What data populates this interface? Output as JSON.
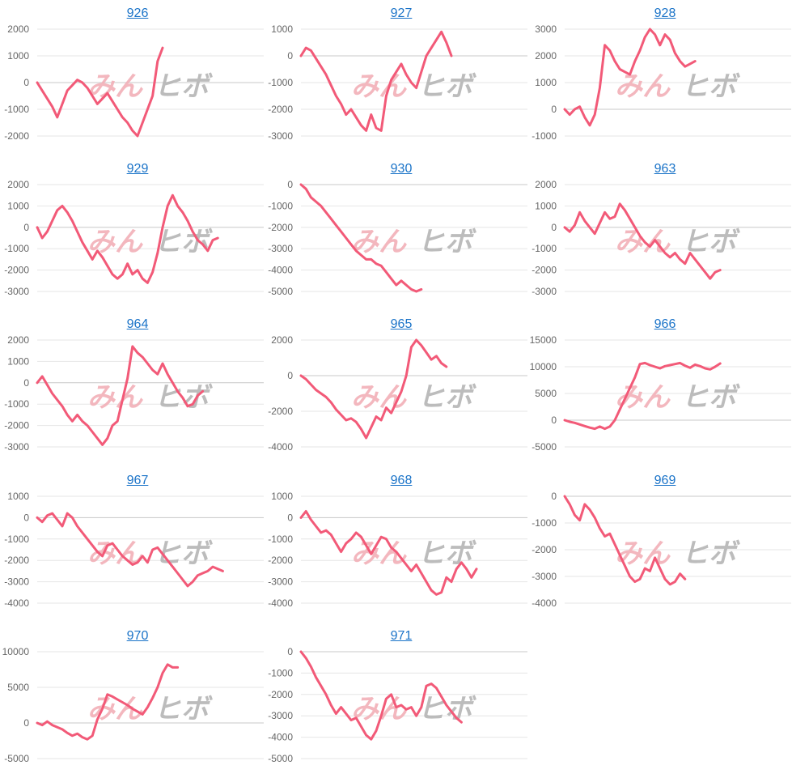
{
  "watermark": {
    "part1": "みん",
    "part2": "ヒボ"
  },
  "colors": {
    "line": "#f25a78",
    "title": "#1a73c8",
    "grid": "#e6e6e6"
  },
  "chart_data": [
    {
      "type": "line",
      "title": "926",
      "yticks": [
        2000,
        1000,
        0,
        -1000,
        -2000
      ],
      "ylim": [
        -2000,
        2000
      ],
      "values": [
        0,
        -300,
        -600,
        -900,
        -1300,
        -800,
        -300,
        -100,
        100,
        0,
        -200,
        -500,
        -800,
        -600,
        -400,
        -700,
        -1000,
        -1300,
        -1500,
        -1800,
        -2000,
        -1500,
        -1000,
        -500,
        800,
        1300
      ]
    },
    {
      "type": "line",
      "title": "927",
      "yticks": [
        1000,
        0,
        -1000,
        -2000,
        -3000
      ],
      "ylim": [
        -3000,
        1000
      ],
      "values": [
        0,
        300,
        200,
        -100,
        -400,
        -700,
        -1100,
        -1500,
        -1800,
        -2200,
        -2000,
        -2300,
        -2600,
        -2800,
        -2200,
        -2700,
        -2800,
        -1500,
        -900,
        -600,
        -300,
        -700,
        -1000,
        -1200,
        -600,
        0,
        300,
        600,
        900,
        500,
        0
      ]
    },
    {
      "type": "line",
      "title": "928",
      "yticks": [
        3000,
        2000,
        1000,
        0,
        -1000
      ],
      "ylim": [
        -1000,
        3000
      ],
      "values": [
        0,
        -200,
        0,
        100,
        -300,
        -600,
        -200,
        800,
        2400,
        2200,
        1800,
        1500,
        1400,
        1300,
        1800,
        2200,
        2700,
        3000,
        2800,
        2400,
        2800,
        2600,
        2100,
        1800,
        1600,
        1700,
        1800
      ]
    },
    {
      "type": "line",
      "title": "929",
      "yticks": [
        2000,
        1000,
        0,
        -1000,
        -2000,
        -3000
      ],
      "ylim": [
        -3000,
        2000
      ],
      "values": [
        0,
        -500,
        -200,
        300,
        800,
        1000,
        700,
        300,
        -200,
        -700,
        -1100,
        -1500,
        -1100,
        -1400,
        -1800,
        -2200,
        -2400,
        -2200,
        -1700,
        -2200,
        -2000,
        -2400,
        -2600,
        -2100,
        -1200,
        0,
        1000,
        1500,
        1000,
        700,
        300,
        -200,
        -600,
        -800,
        -1100,
        -600,
        -500
      ]
    },
    {
      "type": "line",
      "title": "930",
      "yticks": [
        0,
        -1000,
        -2000,
        -3000,
        -4000,
        -5000
      ],
      "ylim": [
        -5000,
        0
      ],
      "values": [
        0,
        -200,
        -600,
        -800,
        -1000,
        -1300,
        -1600,
        -1900,
        -2200,
        -2500,
        -2800,
        -3100,
        -3300,
        -3500,
        -3500,
        -3700,
        -3800,
        -4100,
        -4400,
        -4700,
        -4500,
        -4700,
        -4900,
        -5000,
        -4900
      ]
    },
    {
      "type": "line",
      "title": "963",
      "yticks": [
        2000,
        1000,
        0,
        -1000,
        -2000,
        -3000
      ],
      "ylim": [
        -3000,
        2000
      ],
      "values": [
        0,
        -200,
        100,
        700,
        300,
        0,
        -300,
        200,
        700,
        400,
        500,
        1100,
        800,
        400,
        0,
        -400,
        -700,
        -900,
        -600,
        -900,
        -1200,
        -1400,
        -1200,
        -1500,
        -1700,
        -1200,
        -1500,
        -1800,
        -2100,
        -2400,
        -2100,
        -2000
      ]
    },
    {
      "type": "line",
      "title": "964",
      "yticks": [
        2000,
        1000,
        0,
        -1000,
        -2000,
        -3000
      ],
      "ylim": [
        -3000,
        2000
      ],
      "values": [
        0,
        300,
        -100,
        -500,
        -800,
        -1100,
        -1500,
        -1800,
        -1500,
        -1800,
        -2000,
        -2300,
        -2600,
        -2900,
        -2600,
        -2000,
        -1800,
        -800,
        200,
        1700,
        1400,
        1200,
        900,
        600,
        400,
        900,
        400,
        0,
        -400,
        -700,
        -1100,
        -1000,
        -600,
        -400
      ]
    },
    {
      "type": "line",
      "title": "965",
      "yticks": [
        2000,
        0,
        -2000,
        -4000
      ],
      "ylim": [
        -4000,
        2000
      ],
      "values": [
        0,
        -200,
        -500,
        -800,
        -1000,
        -1200,
        -1500,
        -1900,
        -2200,
        -2500,
        -2400,
        -2600,
        -3000,
        -3500,
        -2900,
        -2300,
        -2500,
        -1800,
        -2100,
        -1500,
        -900,
        0,
        1600,
        2000,
        1700,
        1300,
        900,
        1100,
        700,
        500
      ]
    },
    {
      "type": "line",
      "title": "966",
      "yticks": [
        15000,
        10000,
        5000,
        0,
        -5000
      ],
      "ylim": [
        -5000,
        15000
      ],
      "values": [
        0,
        -300,
        -500,
        -800,
        -1100,
        -1400,
        -1600,
        -1200,
        -1600,
        -1200,
        0,
        2000,
        4000,
        6000,
        8000,
        10500,
        10700,
        10300,
        10000,
        9700,
        10100,
        10300,
        10500,
        10700,
        10200,
        9800,
        10400,
        10100,
        9700,
        9500,
        10000,
        10600
      ]
    },
    {
      "type": "line",
      "title": "967",
      "yticks": [
        1000,
        0,
        -1000,
        -2000,
        -3000,
        -4000
      ],
      "ylim": [
        -4000,
        1000
      ],
      "values": [
        0,
        -200,
        100,
        200,
        -100,
        -400,
        200,
        0,
        -400,
        -700,
        -1000,
        -1300,
        -1600,
        -1800,
        -1300,
        -1200,
        -1500,
        -1800,
        -2000,
        -2200,
        -2100,
        -1800,
        -2100,
        -1500,
        -1400,
        -1700,
        -2000,
        -2300,
        -2600,
        -2900,
        -3200,
        -3000,
        -2700,
        -2600,
        -2500,
        -2300,
        -2400,
        -2500
      ]
    },
    {
      "type": "line",
      "title": "968",
      "yticks": [
        1000,
        0,
        -1000,
        -2000,
        -3000,
        -4000
      ],
      "ylim": [
        -4000,
        1000
      ],
      "values": [
        0,
        300,
        -100,
        -400,
        -700,
        -600,
        -800,
        -1200,
        -1600,
        -1200,
        -1000,
        -700,
        -900,
        -1300,
        -1700,
        -1300,
        -900,
        -1000,
        -1400,
        -1600,
        -1900,
        -2200,
        -2500,
        -2200,
        -2600,
        -3000,
        -3400,
        -3600,
        -3500,
        -2800,
        -3000,
        -2400,
        -2100,
        -2400,
        -2800,
        -2400
      ]
    },
    {
      "type": "line",
      "title": "969",
      "yticks": [
        0,
        -1000,
        -2000,
        -3000,
        -4000
      ],
      "ylim": [
        -4000,
        0
      ],
      "values": [
        0,
        -300,
        -700,
        -900,
        -300,
        -500,
        -800,
        -1200,
        -1500,
        -1400,
        -1800,
        -2200,
        -2600,
        -3000,
        -3200,
        -3100,
        -2700,
        -2800,
        -2300,
        -2700,
        -3100,
        -3300,
        -3200,
        -2900,
        -3100
      ]
    },
    {
      "type": "line",
      "title": "970",
      "yticks": [
        10000,
        5000,
        0,
        -5000
      ],
      "ylim": [
        -5000,
        10000
      ],
      "values": [
        0,
        -300,
        200,
        -300,
        -600,
        -900,
        -1400,
        -1800,
        -1500,
        -2000,
        -2300,
        -1800,
        500,
        2000,
        4000,
        3700,
        3300,
        2900,
        2500,
        2000,
        1600,
        1200,
        2200,
        3500,
        5000,
        7000,
        8200,
        7800,
        7800
      ]
    },
    {
      "type": "line",
      "title": "971",
      "yticks": [
        0,
        -1000,
        -2000,
        -3000,
        -4000,
        -5000
      ],
      "ylim": [
        -5000,
        0
      ],
      "values": [
        0,
        -300,
        -700,
        -1200,
        -1600,
        -2000,
        -2500,
        -2900,
        -2600,
        -2900,
        -3200,
        -3100,
        -3500,
        -3900,
        -4100,
        -3700,
        -3000,
        -2200,
        -2000,
        -2600,
        -2500,
        -2700,
        -2600,
        -3000,
        -2600,
        -1600,
        -1500,
        -1700,
        -2100,
        -2500,
        -2800,
        -3100,
        -3300
      ]
    }
  ]
}
